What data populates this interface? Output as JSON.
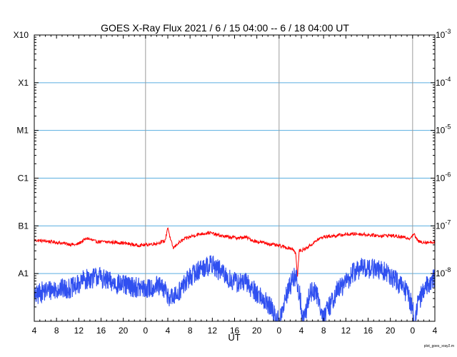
{
  "chart_data": {
    "type": "line",
    "title": "GOES X-Ray Flux   2021 / 6 / 15   04:00 --  6 / 18  04:00   UT",
    "xlabel": "UT",
    "x_tick_labels": [
      "4",
      "8",
      "12",
      "16",
      "20",
      "0",
      "4",
      "8",
      "12",
      "16",
      "20",
      "0",
      "4",
      "8",
      "12",
      "16",
      "20",
      "0",
      "4"
    ],
    "x_range_hours": [
      0,
      72
    ],
    "y_scale": "log",
    "ylim": [
      1e-09,
      0.001
    ],
    "left_class_labels": [
      {
        "label": "X10",
        "flux": 0.001
      },
      {
        "label": "X1",
        "flux": 0.0001
      },
      {
        "label": "M1",
        "flux": 1e-05
      },
      {
        "label": "C1",
        "flux": 1e-06
      },
      {
        "label": "B1",
        "flux": 1e-07
      },
      {
        "label": "A1",
        "flux": 1e-08
      }
    ],
    "right_tick_labels": [
      {
        "mantissa": "10",
        "exponent": "-3",
        "flux": 0.001
      },
      {
        "mantissa": "10",
        "exponent": "-4",
        "flux": 0.0001
      },
      {
        "mantissa": "10",
        "exponent": "-5",
        "flux": 1e-05
      },
      {
        "mantissa": "10",
        "exponent": "-6",
        "flux": 1e-06
      },
      {
        "mantissa": "10",
        "exponent": "-7",
        "flux": 1e-07
      },
      {
        "mantissa": "10",
        "exponent": "-8",
        "flux": 1e-08
      }
    ],
    "horizontal_grid_flux": [
      0.0001,
      1e-05,
      1e-06,
      1e-07,
      1e-08
    ],
    "day_boundary_hours": [
      20,
      44,
      68
    ],
    "series": [
      {
        "color": "#ff0000",
        "points": [
          [
            0,
            5e-08
          ],
          [
            2,
            4.8e-08
          ],
          [
            4,
            4.5e-08
          ],
          [
            6,
            4.2e-08
          ],
          [
            7.5,
            4e-08
          ],
          [
            8,
            4.3e-08
          ],
          [
            9.5,
            5.5e-08
          ],
          [
            11,
            4.7e-08
          ],
          [
            13,
            4.6e-08
          ],
          [
            15,
            4.5e-08
          ],
          [
            17,
            4.2e-08
          ],
          [
            18.5,
            3.9e-08
          ],
          [
            20,
            4e-08
          ],
          [
            22,
            4.3e-08
          ],
          [
            23.5,
            4.8e-08
          ],
          [
            24,
            9.5e-08
          ],
          [
            24.5,
            5e-08
          ],
          [
            25,
            3.4e-08
          ],
          [
            25.8,
            4.3e-08
          ],
          [
            27,
            5.3e-08
          ],
          [
            28.5,
            6.2e-08
          ],
          [
            30,
            6.8e-08
          ],
          [
            31.5,
            7.2e-08
          ],
          [
            33,
            6.4e-08
          ],
          [
            35,
            5.8e-08
          ],
          [
            37,
            5.6e-08
          ],
          [
            38,
            5.8e-08
          ],
          [
            39.5,
            4.8e-08
          ],
          [
            41,
            4.5e-08
          ],
          [
            43,
            4e-08
          ],
          [
            45,
            3.6e-08
          ],
          [
            46.5,
            3.3e-08
          ],
          [
            47,
            2.6e-08
          ],
          [
            47.3,
            8e-09
          ],
          [
            47.6,
            3e-08
          ],
          [
            48.5,
            3.2e-08
          ],
          [
            50,
            4.2e-08
          ],
          [
            51,
            5.2e-08
          ],
          [
            52,
            5.9e-08
          ],
          [
            54,
            6.2e-08
          ],
          [
            56,
            6.6e-08
          ],
          [
            58,
            6.8e-08
          ],
          [
            60,
            6.5e-08
          ],
          [
            62,
            6.2e-08
          ],
          [
            64,
            6.3e-08
          ],
          [
            66,
            5.8e-08
          ],
          [
            67.5,
            5.5e-08
          ],
          [
            68.2,
            6.8e-08
          ],
          [
            69,
            4.7e-08
          ],
          [
            70.5,
            4.5e-08
          ],
          [
            72,
            4.6e-08
          ]
        ]
      },
      {
        "color": "#3050f0",
        "points": [
          [
            0,
            3e-09
          ],
          [
            1,
            4e-09
          ],
          [
            2.5,
            4.5e-09
          ],
          [
            4,
            4.8e-09
          ],
          [
            6,
            4.8e-09
          ],
          [
            7.5,
            5.3e-09
          ],
          [
            8,
            6e-09
          ],
          [
            9,
            7.5e-09
          ],
          [
            10.5,
            8e-09
          ],
          [
            11.5,
            9e-09
          ],
          [
            13,
            7e-09
          ],
          [
            15,
            6e-09
          ],
          [
            17,
            5.5e-09
          ],
          [
            19,
            5e-09
          ],
          [
            20,
            4.6e-09
          ],
          [
            22,
            5.5e-09
          ],
          [
            23.5,
            4.5e-09
          ],
          [
            24,
            3.5e-09
          ],
          [
            25,
            3e-09
          ],
          [
            26.5,
            5e-09
          ],
          [
            28,
            8.5e-09
          ],
          [
            30,
            1.3e-08
          ],
          [
            32,
            1.55e-08
          ],
          [
            33.5,
            1.1e-08
          ],
          [
            35,
            7.5e-09
          ],
          [
            36.5,
            6.5e-09
          ],
          [
            38,
            6.5e-09
          ],
          [
            39.5,
            4.5e-09
          ],
          [
            41,
            3e-09
          ],
          [
            42.5,
            2e-09
          ],
          [
            43.5,
            1.1e-09
          ],
          [
            44,
            1e-09
          ],
          [
            44.5,
            1.5e-09
          ],
          [
            45.5,
            4e-09
          ],
          [
            46.5,
            8e-09
          ],
          [
            47,
            9e-09
          ],
          [
            47.8,
            3e-09
          ],
          [
            48.2,
            1e-09
          ],
          [
            48.8,
            1.6e-09
          ],
          [
            49.5,
            4e-09
          ],
          [
            50.5,
            4.5e-09
          ],
          [
            51.5,
            2e-09
          ],
          [
            52,
            1.2e-09
          ],
          [
            53,
            2e-09
          ],
          [
            54.5,
            4.5e-09
          ],
          [
            56,
            6.5e-09
          ],
          [
            57.5,
            1.1e-08
          ],
          [
            59,
            1.35e-08
          ],
          [
            61,
            1.25e-08
          ],
          [
            63,
            1.1e-08
          ],
          [
            65,
            7e-09
          ],
          [
            67,
            4e-09
          ],
          [
            68,
            2e-09
          ],
          [
            68.3,
            1e-09
          ],
          [
            69,
            2.5e-09
          ],
          [
            70,
            4.5e-09
          ],
          [
            71,
            6.5e-09
          ],
          [
            72,
            8.5e-09
          ]
        ]
      }
    ],
    "grid_color": "#5aaee0",
    "day_line_color": "#9a9a9a",
    "credit": "plot_goes_xray2.m"
  }
}
